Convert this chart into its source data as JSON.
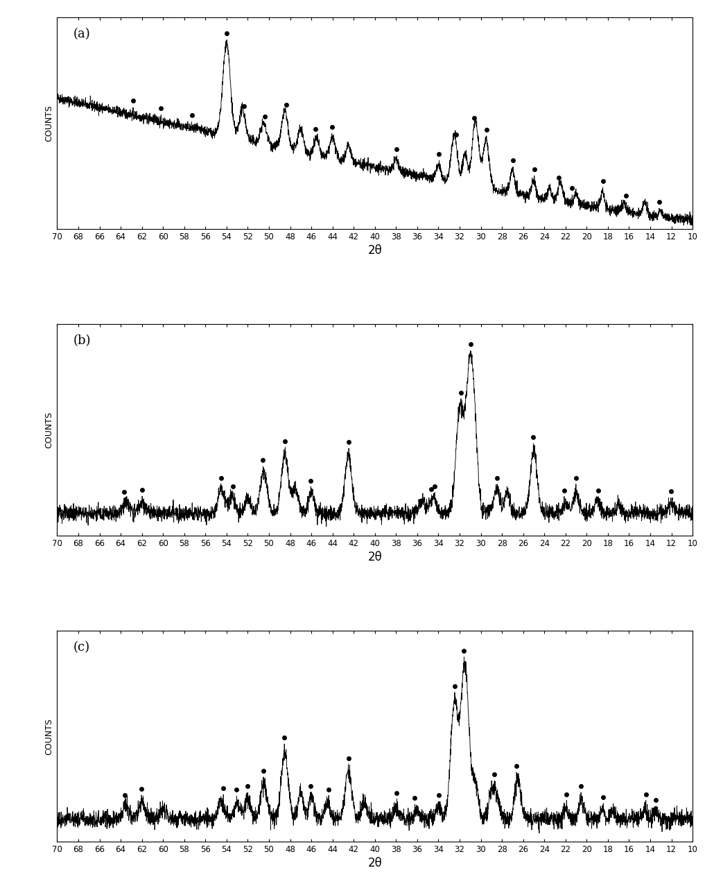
{
  "panel_labels": [
    "(a)",
    "(b)",
    "(c)"
  ],
  "xlabel": "2θ",
  "ylabel": "COUNTS",
  "xlim": [
    70,
    10
  ],
  "xticks": [
    70,
    68,
    66,
    64,
    62,
    60,
    58,
    56,
    54,
    52,
    50,
    48,
    46,
    44,
    42,
    40,
    38,
    36,
    34,
    32,
    30,
    28,
    26,
    24,
    22,
    20,
    18,
    16,
    14,
    12,
    10
  ],
  "background_color": "#ffffff",
  "line_color": "#000000",
  "dot_color": "#000000",
  "dot_size": 5,
  "peaks_a": {
    "positions": [
      54.0,
      52.5,
      50.5,
      48.5,
      47.0,
      45.5,
      44.0,
      42.5,
      38.0,
      34.0,
      32.5,
      31.5,
      30.5,
      29.5,
      27.0,
      25.0,
      23.5,
      22.5,
      21.0,
      18.5,
      16.5,
      14.5,
      13.0
    ],
    "heights": [
      0.55,
      0.18,
      0.12,
      0.22,
      0.14,
      0.1,
      0.12,
      0.1,
      0.07,
      0.09,
      0.28,
      0.18,
      0.38,
      0.28,
      0.14,
      0.1,
      0.07,
      0.12,
      0.06,
      0.09,
      0.05,
      0.07,
      0.04
    ],
    "widths": [
      0.35,
      0.28,
      0.28,
      0.28,
      0.25,
      0.22,
      0.25,
      0.22,
      0.22,
      0.22,
      0.28,
      0.22,
      0.32,
      0.28,
      0.22,
      0.2,
      0.18,
      0.22,
      0.18,
      0.2,
      0.18,
      0.18,
      0.18
    ]
  },
  "dots_a": [
    63.0,
    60.0,
    57.0,
    54.0,
    52.0,
    50.0,
    48.0,
    46.0,
    44.0,
    38.0,
    34.0,
    32.0,
    31.0,
    29.5,
    27.0,
    25.0,
    23.0,
    21.5,
    18.5,
    16.0,
    13.0
  ],
  "peaks_b": {
    "positions": [
      63.5,
      62.0,
      54.5,
      53.5,
      52.0,
      50.5,
      48.5,
      47.5,
      46.0,
      42.5,
      35.5,
      34.5,
      32.0,
      31.0,
      30.5,
      28.5,
      27.5,
      25.0,
      22.0,
      21.0,
      19.0,
      17.0,
      12.0
    ],
    "heights": [
      0.05,
      0.05,
      0.12,
      0.08,
      0.07,
      0.2,
      0.28,
      0.12,
      0.1,
      0.28,
      0.06,
      0.08,
      0.48,
      0.72,
      0.15,
      0.12,
      0.1,
      0.3,
      0.05,
      0.1,
      0.07,
      0.04,
      0.05
    ],
    "widths": [
      0.3,
      0.3,
      0.3,
      0.28,
      0.28,
      0.32,
      0.32,
      0.28,
      0.28,
      0.32,
      0.28,
      0.28,
      0.35,
      0.4,
      0.28,
      0.28,
      0.25,
      0.32,
      0.22,
      0.25,
      0.22,
      0.2,
      0.22
    ]
  },
  "dots_b": [
    64.0,
    62.0,
    54.5,
    53.0,
    50.5,
    48.5,
    46.0,
    42.5,
    35.0,
    34.5,
    32.0,
    31.0,
    28.5,
    25.0,
    22.0,
    21.0,
    19.0,
    12.0
  ],
  "peaks_c": {
    "positions": [
      63.5,
      62.0,
      60.0,
      54.5,
      53.0,
      52.0,
      50.5,
      48.5,
      47.0,
      46.0,
      44.5,
      42.5,
      41.0,
      38.0,
      36.0,
      34.0,
      32.5,
      31.5,
      30.5,
      29.0,
      28.5,
      26.5,
      22.0,
      20.5,
      18.5,
      17.5,
      14.5,
      13.5
    ],
    "heights": [
      0.06,
      0.08,
      0.05,
      0.08,
      0.07,
      0.09,
      0.16,
      0.3,
      0.12,
      0.1,
      0.07,
      0.22,
      0.08,
      0.05,
      0.04,
      0.06,
      0.5,
      0.68,
      0.15,
      0.12,
      0.1,
      0.18,
      0.05,
      0.08,
      0.05,
      0.04,
      0.04,
      0.04
    ],
    "widths": [
      0.28,
      0.28,
      0.28,
      0.28,
      0.26,
      0.28,
      0.3,
      0.32,
      0.26,
      0.26,
      0.24,
      0.3,
      0.26,
      0.24,
      0.22,
      0.24,
      0.35,
      0.38,
      0.28,
      0.26,
      0.24,
      0.28,
      0.22,
      0.24,
      0.2,
      0.2,
      0.2,
      0.2
    ]
  },
  "dots_c": [
    64.0,
    62.0,
    54.0,
    53.0,
    52.0,
    50.5,
    48.5,
    46.0,
    44.5,
    42.5,
    38.0,
    36.0,
    34.0,
    32.5,
    31.5,
    28.5,
    26.5,
    22.0,
    20.5,
    18.5,
    14.5,
    13.5
  ]
}
